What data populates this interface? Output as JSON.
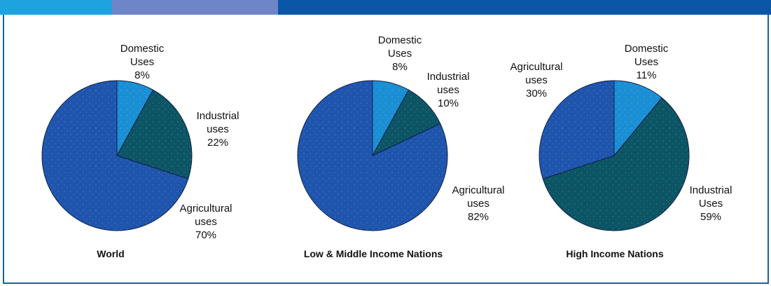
{
  "colors": {
    "domestic": "#1b8fd4",
    "industrial": "#0c5565",
    "agricultural": "#1f55ad",
    "stroke": "#0f1f4d",
    "top_bar": [
      "#1fa3e0",
      "#6e86c9",
      "#0a57a8"
    ]
  },
  "chart_data": [
    {
      "type": "pie",
      "title": "World",
      "slices": [
        {
          "name": "Domestic Uses",
          "lines": [
            "Domestic",
            "Uses",
            "8%"
          ],
          "value": 8,
          "color_key": "domestic"
        },
        {
          "name": "Industrial uses",
          "lines": [
            "Industrial",
            "uses",
            "22%"
          ],
          "value": 22,
          "color_key": "industrial"
        },
        {
          "name": "Agricultural uses",
          "lines": [
            "Agricultural",
            "uses",
            "70%"
          ],
          "value": 70,
          "color_key": "agricultural"
        }
      ]
    },
    {
      "type": "pie",
      "title": "Low & Middle Income Nations",
      "slices": [
        {
          "name": "Domestic Uses",
          "lines": [
            "Domestic",
            "Uses",
            "8%"
          ],
          "value": 8,
          "color_key": "domestic"
        },
        {
          "name": "Industrial uses",
          "lines": [
            "Industrial",
            "uses",
            "10%"
          ],
          "value": 10,
          "color_key": "industrial"
        },
        {
          "name": "Agricultural uses",
          "lines": [
            "Agricultural",
            "uses",
            "82%"
          ],
          "value": 82,
          "color_key": "agricultural"
        }
      ]
    },
    {
      "type": "pie",
      "title": "High Income Nations",
      "slices": [
        {
          "name": "Domestic Uses",
          "lines": [
            "Domestic",
            "Uses",
            "11%"
          ],
          "value": 11,
          "color_key": "domestic"
        },
        {
          "name": "Industrial Uses",
          "lines": [
            "Industrial",
            "Uses",
            "59%"
          ],
          "value": 59,
          "color_key": "industrial"
        },
        {
          "name": "Agricultural uses",
          "lines": [
            "Agricultural",
            "uses",
            "30%"
          ],
          "value": 30,
          "color_key": "agricultural"
        }
      ]
    }
  ]
}
